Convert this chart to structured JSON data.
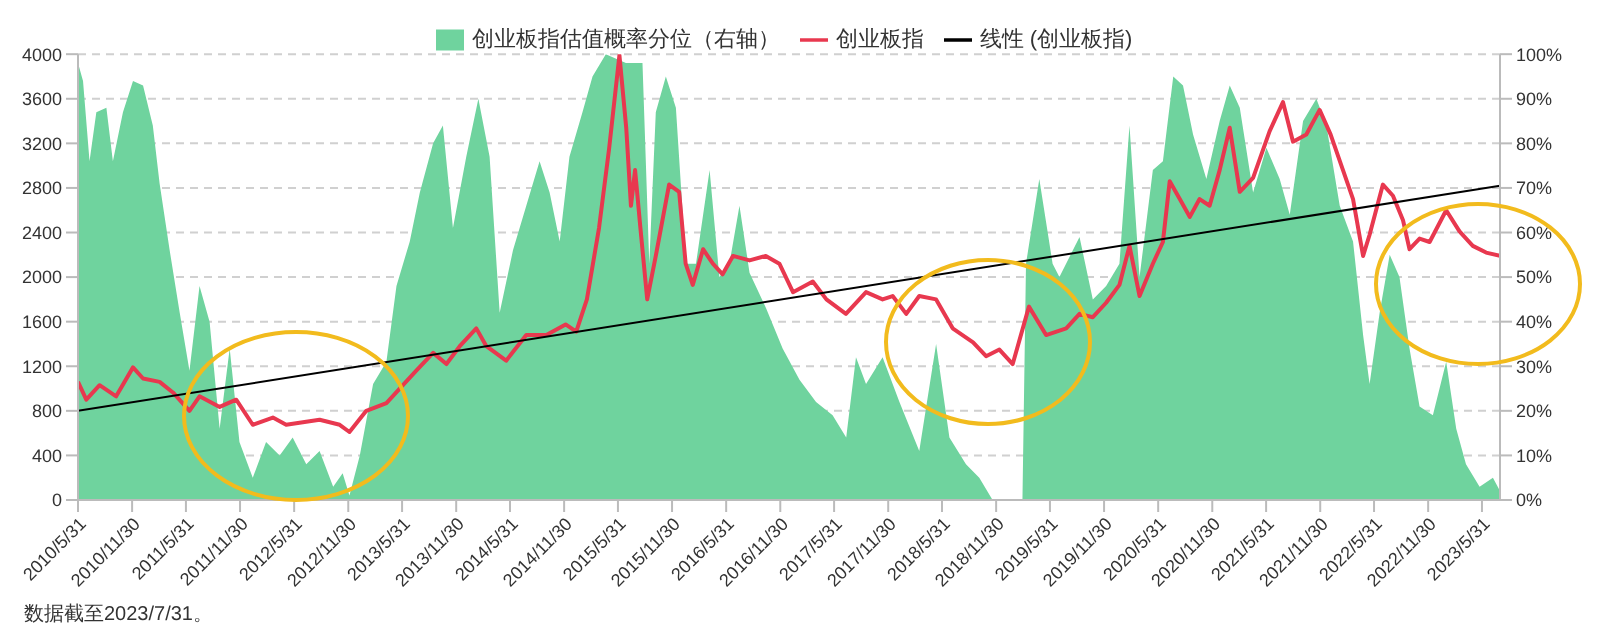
{
  "chart_data": {
    "type": "line",
    "legend": "top",
    "grid": "y",
    "xlim": [
      "2010-05-31",
      "2023-07-31"
    ],
    "xticks": [
      {
        "value": "2010-05-31",
        "label": "2010/5/31"
      },
      {
        "value": "2010-11-30",
        "label": "2010/11/30"
      },
      {
        "value": "2011-05-31",
        "label": "2011/5/31"
      },
      {
        "value": "2011-11-30",
        "label": "2011/11/30"
      },
      {
        "value": "2012-05-31",
        "label": "2012/5/31"
      },
      {
        "value": "2012-11-30",
        "label": "2012/11/30"
      },
      {
        "value": "2013-05-31",
        "label": "2013/5/31"
      },
      {
        "value": "2013-11-30",
        "label": "2013/11/30"
      },
      {
        "value": "2014-05-31",
        "label": "2014/5/31"
      },
      {
        "value": "2014-11-30",
        "label": "2014/11/30"
      },
      {
        "value": "2015-05-31",
        "label": "2015/5/31"
      },
      {
        "value": "2015-11-30",
        "label": "2015/11/30"
      },
      {
        "value": "2016-05-31",
        "label": "2016/5/31"
      },
      {
        "value": "2016-11-30",
        "label": "2016/11/30"
      },
      {
        "value": "2017-05-31",
        "label": "2017/5/31"
      },
      {
        "value": "2017-11-30",
        "label": "2017/11/30"
      },
      {
        "value": "2018-05-31",
        "label": "2018/5/31"
      },
      {
        "value": "2018-11-30",
        "label": "2018/11/30"
      },
      {
        "value": "2019-05-31",
        "label": "2019/5/31"
      },
      {
        "value": "2019-11-30",
        "label": "2019/11/30"
      },
      {
        "value": "2020-05-31",
        "label": "2020/5/31"
      },
      {
        "value": "2020-11-30",
        "label": "2020/11/30"
      },
      {
        "value": "2021-05-31",
        "label": "2021/5/31"
      },
      {
        "value": "2021-11-30",
        "label": "2021/11/30"
      },
      {
        "value": "2022-05-31",
        "label": "2022/5/31"
      },
      {
        "value": "2022-11-30",
        "label": "2022/11/30"
      },
      {
        "value": "2023-05-31",
        "label": "2023/5/31"
      }
    ],
    "ylim": [
      0,
      4000
    ],
    "yticks": [
      0,
      400,
      800,
      1200,
      1600,
      2000,
      2400,
      2800,
      3200,
      3600,
      4000
    ],
    "y2lim": [
      0,
      100
    ],
    "y2ticks": [
      {
        "value": 0,
        "label": "0%"
      },
      {
        "value": 10,
        "label": "10%"
      },
      {
        "value": 20,
        "label": "20%"
      },
      {
        "value": 30,
        "label": "30%"
      },
      {
        "value": 40,
        "label": "40%"
      },
      {
        "value": 50,
        "label": "50%"
      },
      {
        "value": 60,
        "label": "60%"
      },
      {
        "value": 70,
        "label": "70%"
      },
      {
        "value": 80,
        "label": "80%"
      },
      {
        "value": 90,
        "label": "90%"
      },
      {
        "value": 100,
        "label": "100%"
      }
    ],
    "annotations": [
      "数据截至2023/7/31。"
    ],
    "series": [
      {
        "name": "创业板指估值概率分位（右轴）",
        "type": "area",
        "axis": "y2",
        "color": "#6fd39e",
        "x": [
          "2010-05-31",
          "2010-06-17",
          "2010-07-09",
          "2010-08-01",
          "2010-09-04",
          "2010-09-26",
          "2010-10-30",
          "2010-12-03",
          "2011-01-06",
          "2011-02-08",
          "2011-03-03",
          "2011-04-06",
          "2011-05-10",
          "2011-06-12",
          "2011-07-16",
          "2011-08-19",
          "2011-09-22",
          "2011-10-26",
          "2011-11-28",
          "2012-01-12",
          "2012-02-26",
          "2012-04-12",
          "2012-05-26",
          "2012-07-11",
          "2012-08-25",
          "2012-10-10",
          "2012-11-11",
          "2012-12-04",
          "2013-01-08",
          "2013-02-22",
          "2013-04-08",
          "2013-05-12",
          "2013-06-26",
          "2013-07-30",
          "2013-09-13",
          "2013-10-16",
          "2013-11-19",
          "2014-01-03",
          "2014-02-13",
          "2014-03-23",
          "2014-04-26",
          "2014-06-10",
          "2014-07-25",
          "2014-09-08",
          "2014-10-12",
          "2014-11-15",
          "2014-12-18",
          "2015-01-31",
          "2015-03-06",
          "2015-04-20",
          "2015-06-27",
          "2015-08-22",
          "2015-09-14",
          "2015-10-06",
          "2015-11-09",
          "2015-12-13",
          "2016-01-16",
          "2016-02-19",
          "2016-04-05",
          "2016-05-08",
          "2016-06-11",
          "2016-07-15",
          "2016-08-18",
          "2016-10-13",
          "2016-12-08",
          "2017-02-03",
          "2017-03-31",
          "2017-05-26",
          "2017-07-11",
          "2017-08-13",
          "2017-09-16",
          "2017-11-11",
          "2018-01-07",
          "2018-03-15",
          "2018-05-11",
          "2018-06-25",
          "2018-08-20",
          "2018-10-04",
          "2018-11-18",
          "2019-01-25",
          "2019-02-27",
          "2019-03-11",
          "2019-04-25",
          "2019-06-09",
          "2019-07-02",
          "2019-09-08",
          "2019-10-23",
          "2019-12-07",
          "2020-01-21",
          "2020-02-24",
          "2020-03-29",
          "2020-05-13",
          "2020-06-16",
          "2020-07-21",
          "2020-08-23",
          "2020-09-26",
          "2020-11-10",
          "2020-12-25",
          "2021-01-28",
          "2021-03-03",
          "2021-04-17",
          "2021-06-01",
          "2021-07-16",
          "2021-08-19",
          "2021-10-03",
          "2021-11-17",
          "2021-12-21",
          "2022-02-04",
          "2022-03-21",
          "2022-04-24",
          "2022-05-16",
          "2022-06-19",
          "2022-07-23",
          "2022-08-25",
          "2022-09-28",
          "2022-11-01",
          "2022-12-16",
          "2023-01-30",
          "2023-03-05",
          "2023-04-07",
          "2023-05-23",
          "2023-07-07",
          "2023-07-31"
        ],
        "values": [
          98,
          94,
          76,
          87,
          88,
          76,
          87,
          94,
          93,
          84,
          71,
          56,
          42,
          29,
          48,
          40,
          16,
          34,
          13,
          5,
          13,
          10,
          14,
          8,
          11,
          3,
          6,
          1,
          10,
          26,
          31,
          48,
          58,
          69,
          80,
          84,
          61,
          77,
          90,
          77,
          42,
          56,
          66,
          76,
          69,
          58,
          77,
          87,
          95,
          100,
          98,
          98,
          53,
          87,
          95,
          88,
          53,
          53,
          74,
          50,
          53,
          66,
          51,
          43,
          34,
          27,
          22,
          19,
          14,
          32,
          26,
          32,
          22,
          11,
          35,
          14,
          8,
          5,
          0,
          0,
          0,
          53,
          72,
          53,
          50,
          59,
          45,
          48,
          53,
          84,
          50,
          74,
          76,
          95,
          93,
          82,
          72,
          85,
          93,
          88,
          69,
          79,
          72,
          64,
          85,
          90,
          84,
          66,
          58,
          37,
          26,
          42,
          55,
          50,
          34,
          21,
          19,
          31,
          16,
          8,
          3,
          5,
          2
        ]
      },
      {
        "name": "创业板指",
        "color": "#e8384f",
        "x": [
          "2010-05-31",
          "2010-06-28",
          "2010-08-12",
          "2010-10-07",
          "2010-12-03",
          "2011-01-06",
          "2011-03-03",
          "2011-04-17",
          "2011-06-12",
          "2011-07-16",
          "2011-09-22",
          "2011-11-17",
          "2012-01-12",
          "2012-03-20",
          "2012-05-04",
          "2012-08-25",
          "2012-11-01",
          "2012-12-04",
          "2013-01-30",
          "2013-04-08",
          "2013-05-23",
          "2013-07-18",
          "2013-09-13",
          "2013-10-28",
          "2013-12-12",
          "2014-02-06",
          "2014-03-12",
          "2014-05-18",
          "2014-07-25",
          "2014-10-01",
          "2014-12-05",
          "2015-01-10",
          "2015-02-15",
          "2015-03-28",
          "2015-05-01",
          "2015-06-05",
          "2015-06-28",
          "2015-07-14",
          "2015-07-28",
          "2015-08-15",
          "2015-09-07",
          "2015-10-06",
          "2015-11-20",
          "2015-12-24",
          "2016-01-15",
          "2016-02-08",
          "2016-03-14",
          "2016-04-16",
          "2016-05-19",
          "2016-06-23",
          "2016-08-18",
          "2016-10-12",
          "2016-11-27",
          "2017-01-12",
          "2017-03-20",
          "2017-05-05",
          "2017-07-10",
          "2017-09-16",
          "2017-11-11",
          "2017-12-15",
          "2018-01-30",
          "2018-03-15",
          "2018-05-11",
          "2018-07-06",
          "2018-09-13",
          "2018-10-27",
          "2018-12-11",
          "2019-01-25",
          "2019-03-21",
          "2019-05-18",
          "2019-07-25",
          "2019-09-08",
          "2019-10-23",
          "2019-12-07",
          "2020-01-21",
          "2020-02-24",
          "2020-03-29",
          "2020-05-13",
          "2020-06-16",
          "2020-07-09",
          "2020-08-12",
          "2020-09-15",
          "2020-10-18",
          "2020-11-21",
          "2020-12-25",
          "2021-01-28",
          "2021-03-03",
          "2021-04-17",
          "2021-06-12",
          "2021-07-27",
          "2021-08-30",
          "2021-10-14",
          "2021-11-28",
          "2022-01-04",
          "2022-02-15",
          "2022-03-21",
          "2022-04-24",
          "2022-05-16",
          "2022-06-30",
          "2022-08-03",
          "2022-09-06",
          "2022-09-28",
          "2022-11-01",
          "2022-12-05",
          "2023-01-30",
          "2023-03-16",
          "2023-04-30",
          "2023-06-14",
          "2023-07-31"
        ],
        "values": [
          1060,
          900,
          1030,
          930,
          1190,
          1090,
          1060,
          965,
          800,
          930,
          835,
          900,
          675,
          740,
          675,
          720,
          675,
          610,
          800,
          870,
          1000,
          1160,
          1320,
          1220,
          1380,
          1540,
          1380,
          1250,
          1480,
          1480,
          1575,
          1510,
          1800,
          2440,
          3150,
          3990,
          3340,
          2640,
          2960,
          2440,
          1800,
          2190,
          2830,
          2765,
          2120,
          1930,
          2250,
          2120,
          2025,
          2190,
          2150,
          2190,
          2120,
          1865,
          1960,
          1800,
          1670,
          1865,
          1800,
          1830,
          1670,
          1830,
          1800,
          1540,
          1415,
          1290,
          1350,
          1220,
          1735,
          1480,
          1540,
          1670,
          1640,
          1770,
          1930,
          2280,
          1830,
          2120,
          2315,
          2860,
          2700,
          2540,
          2700,
          2640,
          2960,
          3340,
          2765,
          2890,
          3310,
          3570,
          3215,
          3280,
          3500,
          3280,
          2960,
          2700,
          2190,
          2380,
          2830,
          2730,
          2510,
          2250,
          2345,
          2315,
          2600,
          2410,
          2280,
          2220,
          2190
        ]
      },
      {
        "name": "线性 (创业板指)",
        "color": "#000000",
        "x": [
          "2010-05-31",
          "2023-07-31"
        ],
        "values": [
          800,
          2820
        ]
      }
    ]
  }
}
